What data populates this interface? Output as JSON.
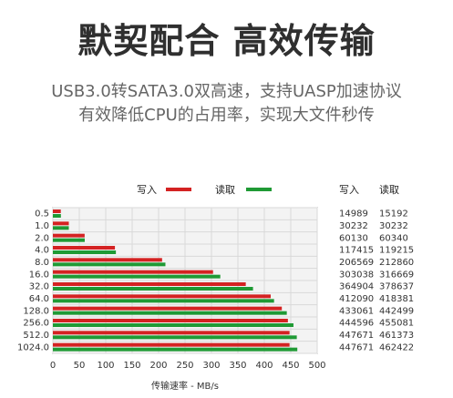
{
  "header": {
    "title": "默契配合 高效传输",
    "subtitle_line1": "USB3.0转SATA3.0双高速，支持UASP加速协议",
    "subtitle_line2": "有效降低CPU的占用率，实现大文件秒传"
  },
  "colors": {
    "write": "#d42222",
    "read": "#1f9a35",
    "grid": "#d9d9d9",
    "axis": "#7f7f7f",
    "plot_fill": "#f3f3f3"
  },
  "chart_data": {
    "type": "bar",
    "categories": [
      "0.5",
      "1.0",
      "2.0",
      "4.0",
      "8.0",
      "16.0",
      "32.0",
      "64.0",
      "128.0",
      "256.0",
      "512.0",
      "1024.0"
    ],
    "series": [
      {
        "name": "写入",
        "values": [
          15.0,
          30.2,
          60.1,
          117.4,
          206.6,
          303.0,
          364.9,
          412.1,
          433.1,
          444.6,
          447.7,
          447.7
        ]
      },
      {
        "name": "读取",
        "values": [
          15.2,
          30.2,
          60.3,
          119.2,
          212.9,
          316.7,
          378.6,
          418.4,
          442.5,
          455.1,
          461.4,
          462.4
        ]
      }
    ],
    "xlabel": "传输速率 - MB/s",
    "xlim": [
      0,
      500
    ],
    "x_ticks": [
      "0",
      "50",
      "100",
      "150",
      "200",
      "250",
      "300",
      "350",
      "400",
      "450",
      "500"
    ],
    "legend": [
      "写入",
      "读取"
    ],
    "table_headers": [
      "写入",
      "读取"
    ],
    "table_rows": [
      [
        "14989",
        "15192"
      ],
      [
        "30232",
        "30232"
      ],
      [
        "60130",
        "60340"
      ],
      [
        "117415",
        "119215"
      ],
      [
        "206569",
        "212860"
      ],
      [
        "303038",
        "316669"
      ],
      [
        "364904",
        "378637"
      ],
      [
        "412090",
        "418381"
      ],
      [
        "433061",
        "442499"
      ],
      [
        "444596",
        "455081"
      ],
      [
        "447671",
        "461373"
      ],
      [
        "447671",
        "462422"
      ]
    ]
  }
}
